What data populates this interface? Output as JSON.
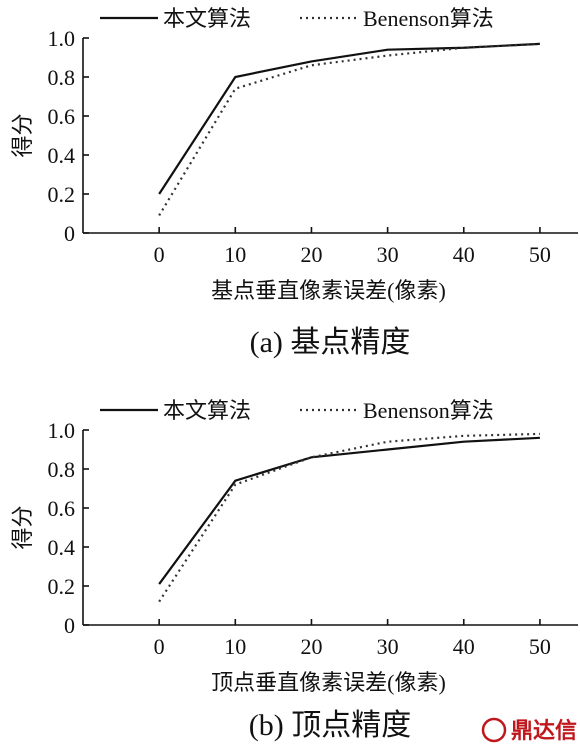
{
  "chart_data": [
    {
      "type": "line",
      "caption": "(a) 基点精度",
      "xlabel": "基点垂直像素误差(像素)",
      "ylabel": "得分",
      "x": [
        0,
        10,
        20,
        30,
        40,
        50
      ],
      "xlim": [
        -10,
        55
      ],
      "ylim": [
        0,
        1.0
      ],
      "xticks": [
        "0",
        "10",
        "20",
        "30",
        "40",
        "50"
      ],
      "yticks": [
        "0",
        "0.2",
        "0.4",
        "0.6",
        "0.8",
        "1.0"
      ],
      "legend": "top",
      "series": [
        {
          "name": "本文算法",
          "style": "solid",
          "values": [
            0.2,
            0.8,
            0.88,
            0.94,
            0.95,
            0.97
          ]
        },
        {
          "name": "Benenson算法",
          "style": "dotted",
          "values": [
            0.09,
            0.74,
            0.86,
            0.91,
            0.95,
            0.97
          ]
        }
      ]
    },
    {
      "type": "line",
      "caption": "(b) 顶点精度",
      "xlabel": "顶点垂直像素误差(像素)",
      "ylabel": "得分",
      "x": [
        0,
        10,
        20,
        30,
        40,
        50
      ],
      "xlim": [
        -10,
        55
      ],
      "ylim": [
        0,
        1.0
      ],
      "xticks": [
        "0",
        "10",
        "20",
        "30",
        "40",
        "50"
      ],
      "yticks": [
        "0",
        "0.2",
        "0.4",
        "0.6",
        "0.8",
        "1.0"
      ],
      "legend": "top",
      "series": [
        {
          "name": "本文算法",
          "style": "solid",
          "values": [
            0.21,
            0.74,
            0.86,
            0.9,
            0.94,
            0.96
          ]
        },
        {
          "name": "Benenson算法",
          "style": "dotted",
          "values": [
            0.12,
            0.72,
            0.86,
            0.94,
            0.97,
            0.98
          ]
        }
      ]
    }
  ],
  "watermark": {
    "text": "鼎达信",
    "color": "#c0171d"
  }
}
